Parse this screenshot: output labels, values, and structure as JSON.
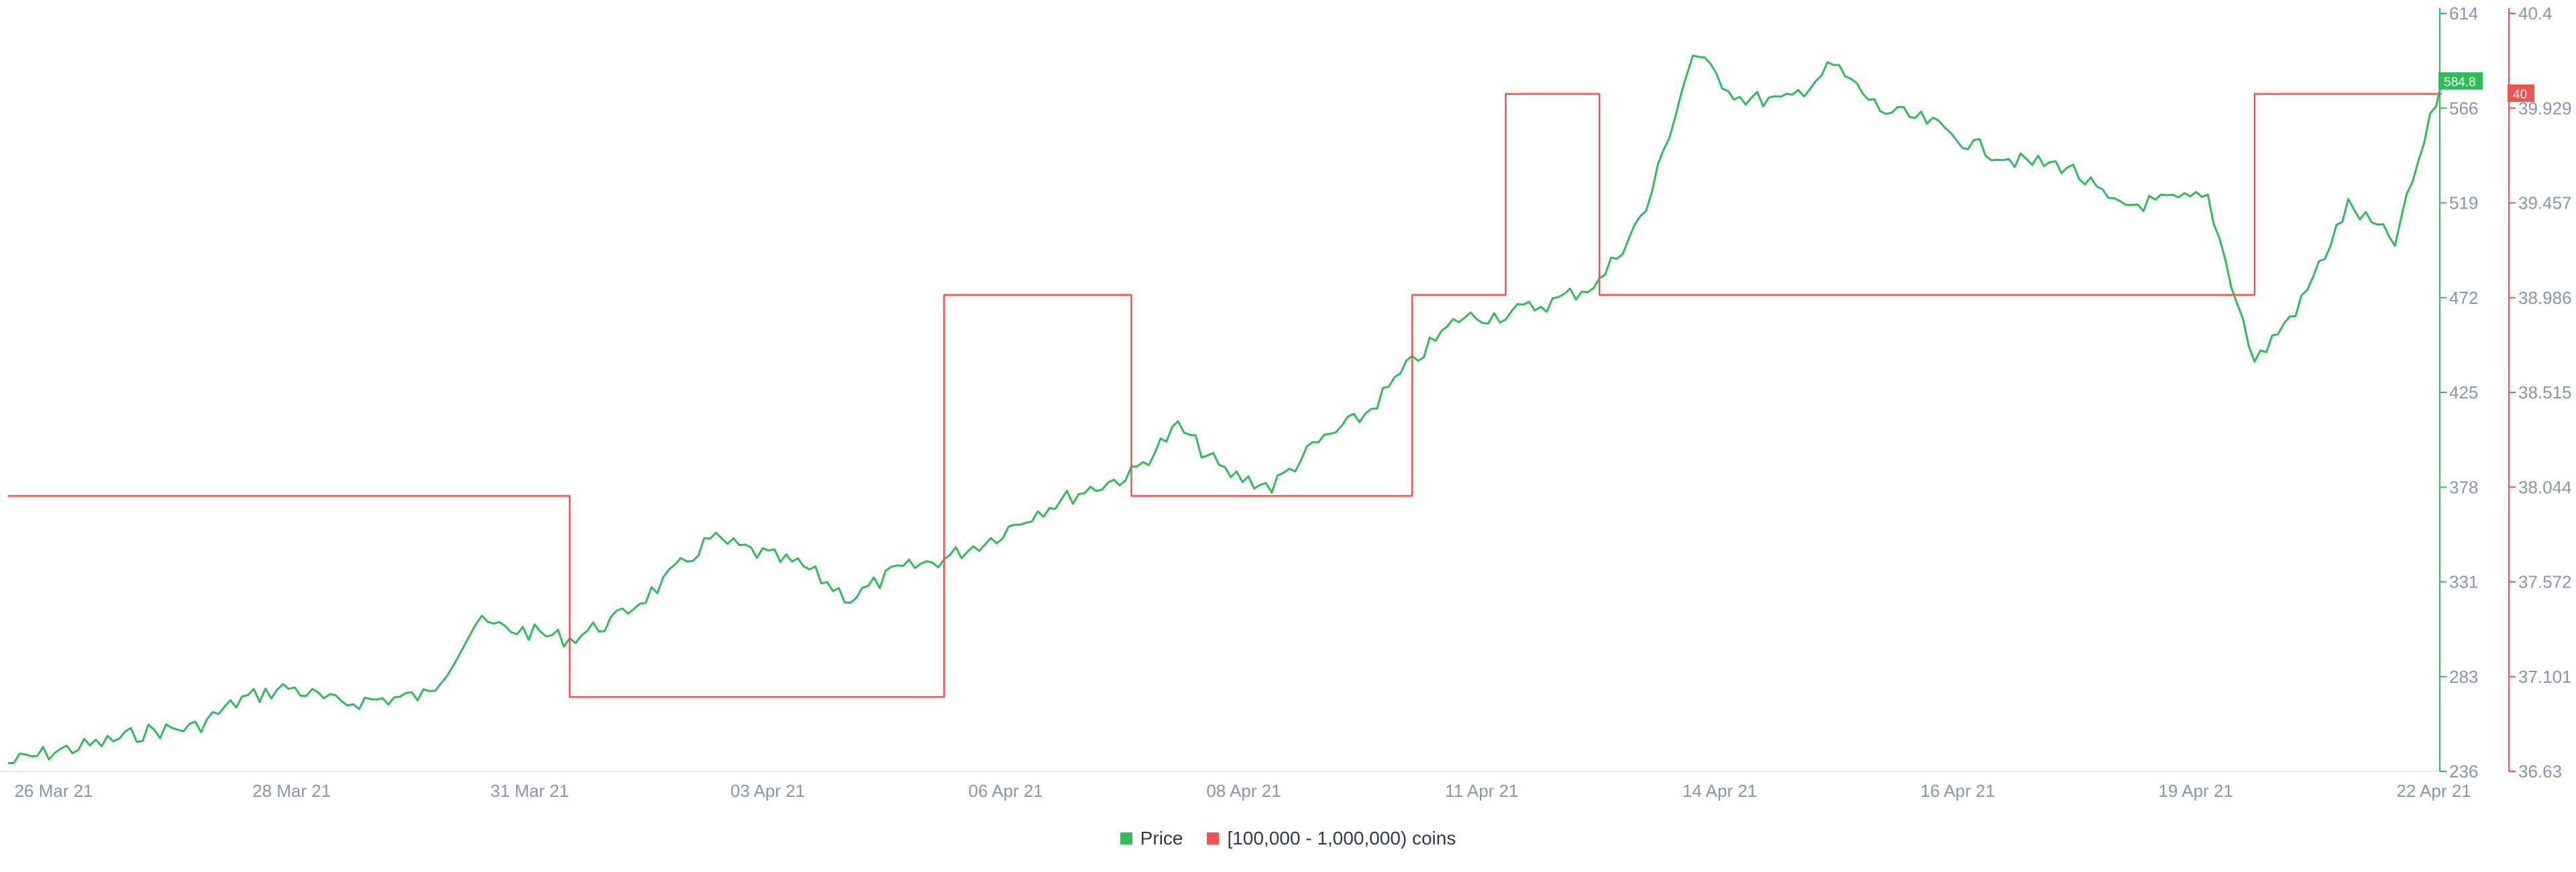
{
  "chart_data": {
    "type": "line",
    "title": "",
    "x_tick_labels": [
      "26 Mar 21",
      "28 Mar 21",
      "31 Mar 21",
      "03 Apr 21",
      "06 Apr 21",
      "08 Apr 21",
      "11 Apr 21",
      "14 Apr 21",
      "16 Apr 21",
      "19 Apr 21",
      "22 Apr 21"
    ],
    "x_range": [
      "2021-03-26",
      "2021-04-21"
    ],
    "y_left": {
      "label": "",
      "ticks": [
        "614",
        "566",
        "519",
        "472",
        "425",
        "378",
        "331",
        "283",
        "236"
      ],
      "range": [
        236,
        614
      ],
      "color": "#2ebd59"
    },
    "y_right": {
      "label": "",
      "ticks": [
        "40.4",
        "39.929",
        "39.457",
        "38.986",
        "38.515",
        "38.044",
        "37.572",
        "37.101",
        "36.63"
      ],
      "range": [
        36.63,
        40.4
      ],
      "color": "#ef5350"
    },
    "legend_position": "bottom-center",
    "series": [
      {
        "name": "Price",
        "axis": "left",
        "color": "#2ebd59",
        "last_value_label": "584.8",
        "x": [
          "2021-03-26",
          "2021-03-26T12:00",
          "2021-03-27",
          "2021-03-27T12:00",
          "2021-03-28",
          "2021-03-28T12:00",
          "2021-03-29",
          "2021-03-29T12:00",
          "2021-03-30",
          "2021-03-30T12:00",
          "2021-03-31",
          "2021-03-31T12:00",
          "2021-04-01",
          "2021-04-01T12:00",
          "2021-04-02",
          "2021-04-02T12:00",
          "2021-04-03",
          "2021-04-03T12:00",
          "2021-04-04",
          "2021-04-04T12:00",
          "2021-04-05",
          "2021-04-05T12:00",
          "2021-04-06",
          "2021-04-06T12:00",
          "2021-04-07",
          "2021-04-07T12:00",
          "2021-04-08",
          "2021-04-08T12:00",
          "2021-04-09",
          "2021-04-09T12:00",
          "2021-04-10",
          "2021-04-10T12:00",
          "2021-04-11",
          "2021-04-11T12:00",
          "2021-04-12",
          "2021-04-12T12:00",
          "2021-04-13",
          "2021-04-13T12:00",
          "2021-04-14",
          "2021-04-14T12:00",
          "2021-04-15",
          "2021-04-15T12:00",
          "2021-04-16",
          "2021-04-16T12:00",
          "2021-04-17",
          "2021-04-17T12:00",
          "2021-04-18",
          "2021-04-18T12:00",
          "2021-04-19",
          "2021-04-19T12:00",
          "2021-04-20",
          "2021-04-20T12:00",
          "2021-04-21"
        ],
        "values": [
          240,
          246,
          250,
          256,
          258,
          272,
          278,
          270,
          272,
          274,
          310,
          306,
          302,
          312,
          330,
          352,
          345,
          338,
          322,
          336,
          342,
          352,
          366,
          376,
          384,
          408,
          385,
          378,
          400,
          414,
          440,
          462,
          464,
          470,
          480,
          516,
          594,
          572,
          570,
          588,
          566,
          560,
          548,
          540,
          538,
          518,
          520,
          522,
          440,
          470,
          518,
          500,
          580
        ]
      },
      {
        "name": "[100,000  - 1,000,000) coins",
        "axis": "right",
        "color": "#ef5350",
        "last_value_label": "40",
        "step": true,
        "x": [
          "2021-03-26",
          "2021-04-01",
          "2021-04-01",
          "2021-04-05",
          "2021-04-05",
          "2021-04-07",
          "2021-04-07",
          "2021-04-10",
          "2021-04-10",
          "2021-04-11",
          "2021-04-11",
          "2021-04-12",
          "2021-04-12",
          "2021-04-19",
          "2021-04-19",
          "2021-04-21"
        ],
        "values": [
          38,
          38,
          37,
          37,
          39,
          39,
          38,
          38,
          39,
          39,
          40,
          40,
          39,
          39,
          40,
          40
        ]
      }
    ]
  }
}
